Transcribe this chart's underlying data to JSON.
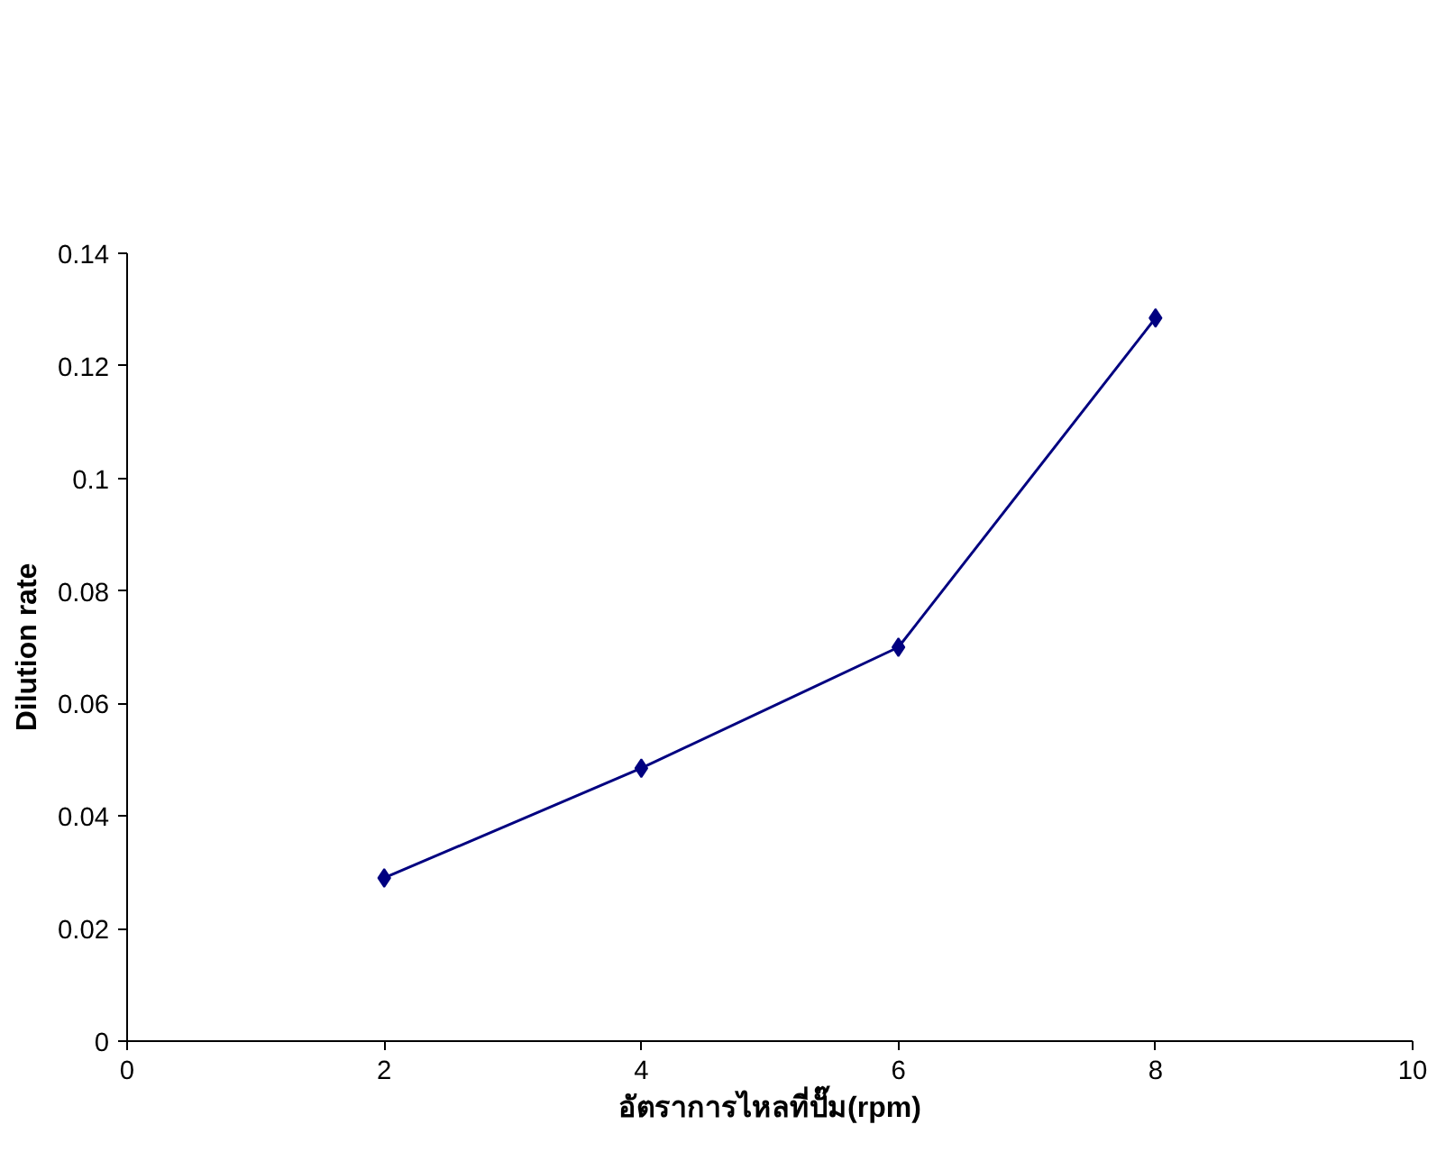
{
  "chart_data": {
    "type": "line",
    "xlabel": "อัตราการไหลที่ปั๊ม(rpm)",
    "ylabel": "Dilution rate",
    "x": [
      2,
      4,
      6,
      8
    ],
    "series": [
      {
        "color": "#000080",
        "values": [
          0.029,
          0.0485,
          0.07,
          0.1285
        ]
      }
    ],
    "xlim": [
      0,
      10
    ],
    "xticks": [
      0,
      2,
      4,
      6,
      8,
      10
    ],
    "ylim": [
      0,
      0.14
    ],
    "yticks": [
      0,
      0.02,
      0.04,
      0.06,
      0.08,
      0.1,
      0.12,
      0.14
    ],
    "marker": "diamond",
    "line_style": "solid",
    "grid": false
  }
}
